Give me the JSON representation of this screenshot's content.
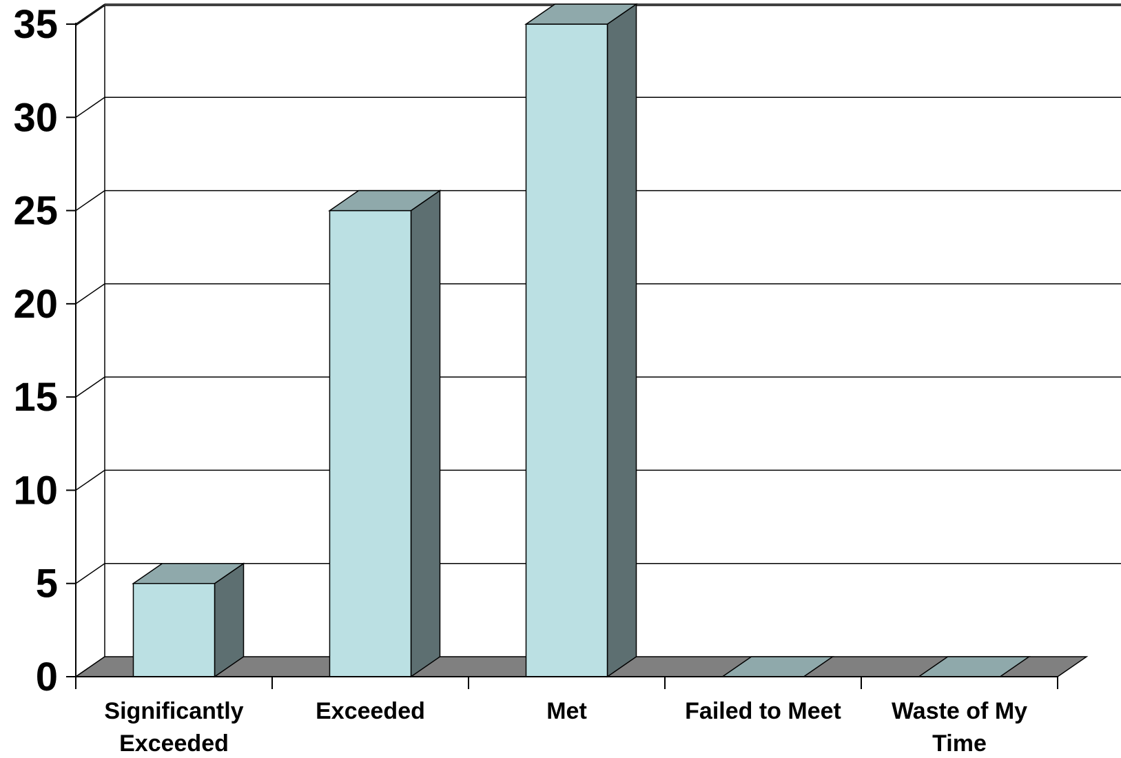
{
  "chart_data": {
    "type": "bar",
    "style": "3d",
    "categories": [
      [
        "Significantly",
        "Exceeded"
      ],
      [
        "Exceeded"
      ],
      [
        "Met"
      ],
      [
        "Failed to Meet"
      ],
      [
        "Waste of My",
        "Time"
      ]
    ],
    "values": [
      5,
      25,
      35,
      0,
      0
    ],
    "ylim": [
      0,
      35
    ],
    "yticks": [
      0,
      5,
      10,
      15,
      20,
      25,
      30,
      35
    ],
    "grid": true,
    "legend": "none",
    "title": "",
    "xlabel": "",
    "ylabel": "",
    "colors": {
      "bar_front": "#bbe0e3",
      "bar_top": "#8fa9ab",
      "bar_side": "#5d6f71",
      "floor": "#808080",
      "gridline": "#000000"
    }
  }
}
